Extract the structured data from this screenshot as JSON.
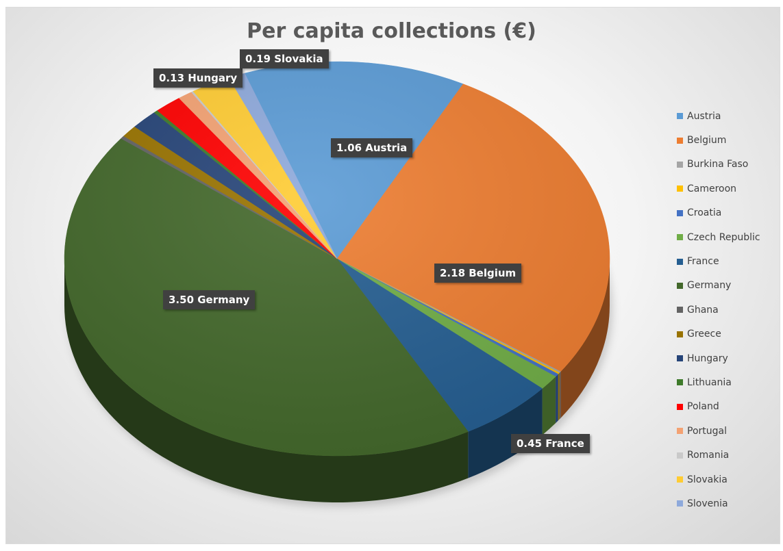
{
  "chart_data": {
    "type": "pie",
    "title": "Per capita collections (€)",
    "style": "3d",
    "legend_position": "right",
    "slices": [
      {
        "name": "Austria",
        "value": 1.06,
        "color": "#5B9BD5",
        "label": "1.06 Austria"
      },
      {
        "name": "Belgium",
        "value": 2.18,
        "color": "#ED7D31",
        "label": "2.18 Belgium"
      },
      {
        "name": "Burkina Faso",
        "value": 0.01,
        "color": "#A5A5A5",
        "label": ""
      },
      {
        "name": "Cameroon",
        "value": 0.01,
        "color": "#FFC000",
        "label": ""
      },
      {
        "name": "Croatia",
        "value": 0.02,
        "color": "#4472C4",
        "label": ""
      },
      {
        "name": "Czech Republic",
        "value": 0.1,
        "color": "#70AD47",
        "label": ""
      },
      {
        "name": "France",
        "value": 0.45,
        "color": "#255E91",
        "label": "0.45 France"
      },
      {
        "name": "Germany",
        "value": 3.5,
        "color": "#43682B",
        "label": "3.50 Germany"
      },
      {
        "name": "Ghana",
        "value": 0.02,
        "color": "#636363",
        "label": ""
      },
      {
        "name": "Greece",
        "value": 0.08,
        "color": "#997300",
        "label": ""
      },
      {
        "name": "Hungary",
        "value": 0.13,
        "color": "#264478",
        "label": "0.13 Hungary"
      },
      {
        "name": "Lithuania",
        "value": 0.02,
        "color": "#3E7A2A",
        "label": ""
      },
      {
        "name": "Poland",
        "value": 0.13,
        "color": "#FF0000",
        "label": ""
      },
      {
        "name": "Portugal",
        "value": 0.07,
        "color": "#F4A273",
        "label": ""
      },
      {
        "name": "Romania",
        "value": 0.01,
        "color": "#C9C9C9",
        "label": ""
      },
      {
        "name": "Slovakia",
        "value": 0.19,
        "color": "#FFCC33",
        "label": "0.19 Slovakia"
      },
      {
        "name": "Slovenia",
        "value": 0.08,
        "color": "#8EA9DB",
        "label": ""
      }
    ]
  }
}
